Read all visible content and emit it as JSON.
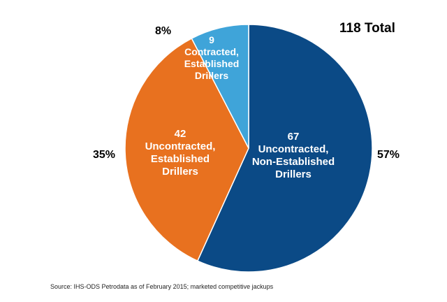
{
  "chart_data": {
    "type": "pie",
    "total_label": "118 Total",
    "colors": {
      "navy": "#0b4a86",
      "orange": "#e8711f",
      "lightblue": "#3fa4d9"
    },
    "slices": [
      {
        "value": 67,
        "value_label": "67",
        "name_lines": [
          "Uncontracted,",
          "Non-Established",
          "Drillers"
        ],
        "percent_label": "57%",
        "color": "#0b4a86"
      },
      {
        "value": 42,
        "value_label": "42",
        "name_lines": [
          "Uncontracted,",
          "Established",
          "Drillers"
        ],
        "percent_label": "35%",
        "color": "#e8711f"
      },
      {
        "value": 9,
        "value_label": "9",
        "name_lines": [
          "Contracted,",
          "Established",
          "Drillers"
        ],
        "percent_label": "8%",
        "color": "#3fa4d9"
      }
    ],
    "source": "Source: IHS-ODS Petrodata as of February 2015; marketed competitive jackups"
  }
}
